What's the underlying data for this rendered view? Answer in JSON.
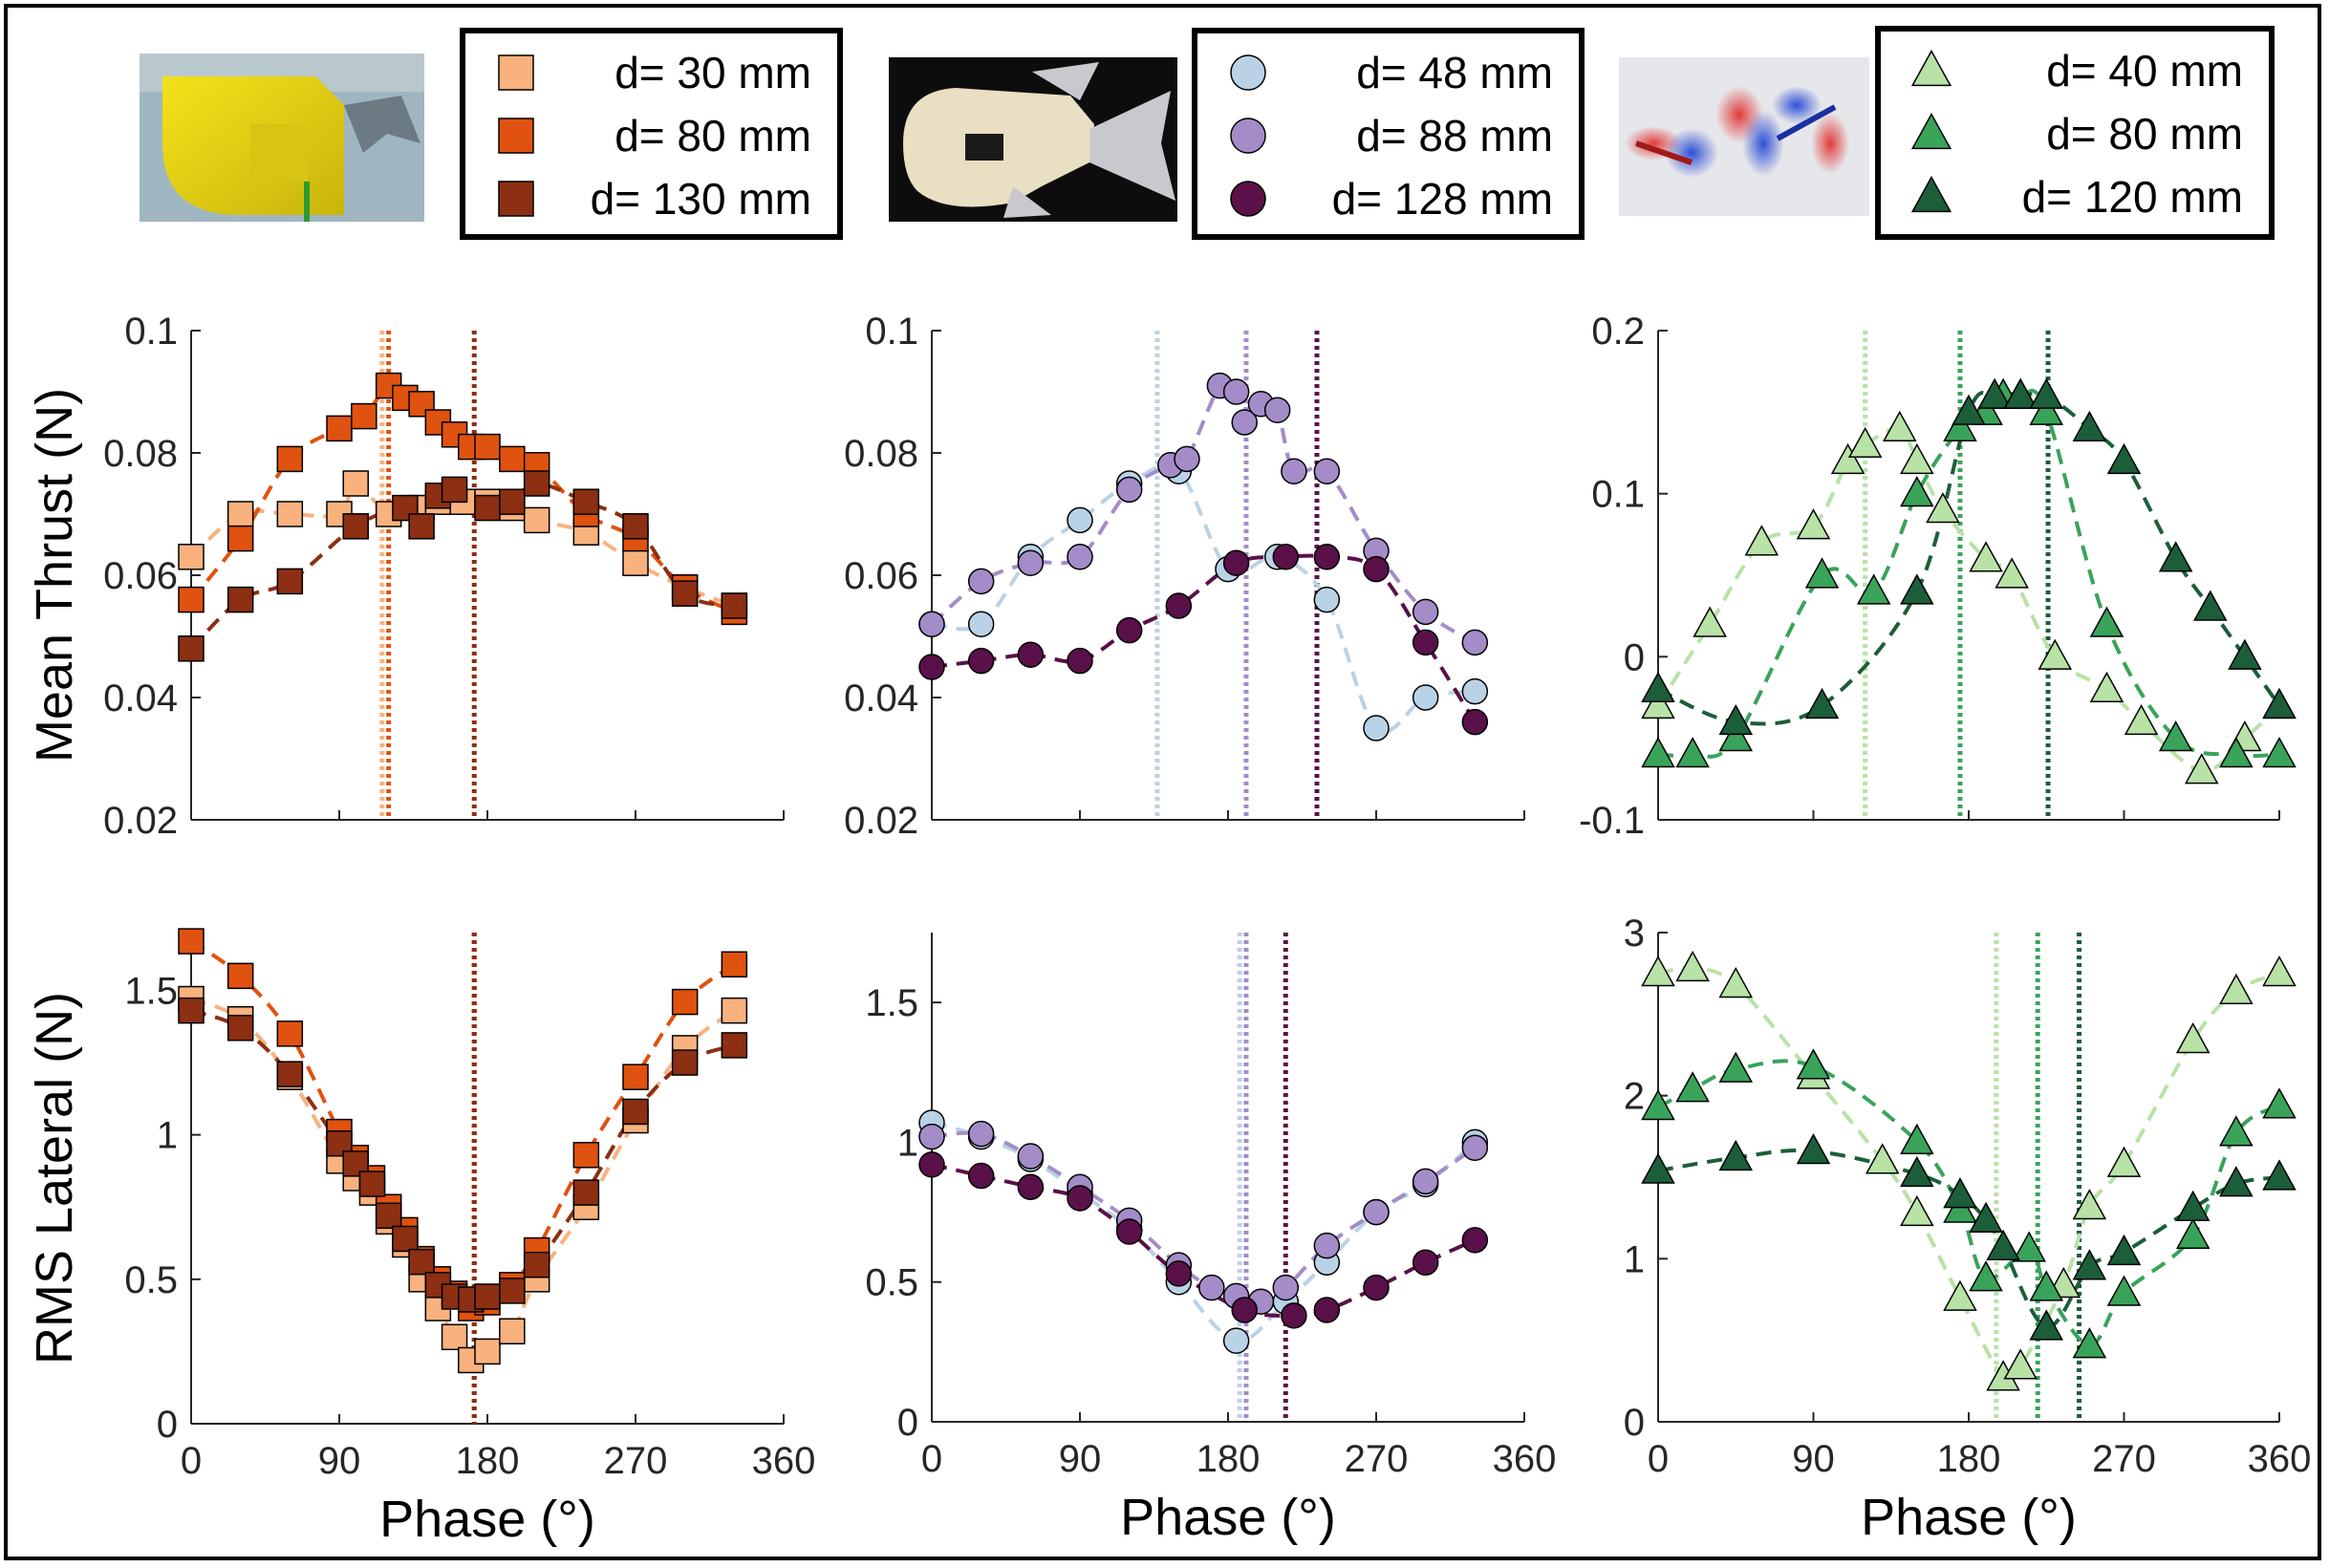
{
  "xlabel": "Phase (°)",
  "ylabels": {
    "top": "Mean Thrust (N)",
    "bottom": "RMS Lateral (N)"
  },
  "legends": [
    {
      "entries": [
        {
          "label": "d=   30 mm",
          "color": "#f9b27e",
          "marker": "square"
        },
        {
          "label": "d=   80 mm",
          "color": "#e0520f",
          "marker": "square"
        },
        {
          "label": "d= 130 mm",
          "color": "#8c2f12",
          "marker": "square"
        }
      ]
    },
    {
      "entries": [
        {
          "label": "d=   48 mm",
          "color": "#b9d2e6",
          "marker": "circle"
        },
        {
          "label": "d=   88 mm",
          "color": "#a48cc9",
          "marker": "circle"
        },
        {
          "label": "d= 128 mm",
          "color": "#5a1048",
          "marker": "circle"
        }
      ]
    },
    {
      "entries": [
        {
          "label": "d=   40 mm",
          "color": "#b8e2a6",
          "marker": "triangle"
        },
        {
          "label": "d=   80 mm",
          "color": "#3aa35a",
          "marker": "triangle"
        },
        {
          "label": "d= 120 mm",
          "color": "#1c5e3a",
          "marker": "triangle"
        }
      ]
    }
  ],
  "chart_data": [
    {
      "type": "scatter",
      "panel": "top-left",
      "ylabel": "Mean Thrust (N)",
      "xlabel": "",
      "xlim": [
        0,
        360
      ],
      "ylim": [
        0.02,
        0.1
      ],
      "xticks": [
        0,
        90,
        180,
        270,
        360
      ],
      "yticks": [
        0.02,
        0.04,
        0.06,
        0.08,
        0.1
      ],
      "yticklabels": [
        "0.02",
        "0.04",
        "0.06",
        "0.08",
        "0.1"
      ],
      "series": [
        {
          "name": "d=   30 mm",
          "color": "#f9b27e",
          "marker": "square",
          "peak": 116,
          "x": [
            0,
            30,
            60,
            90,
            100,
            120,
            140,
            150,
            165,
            180,
            195,
            210,
            240,
            270,
            300,
            330
          ],
          "y": [
            0.063,
            0.07,
            0.07,
            0.07,
            0.075,
            0.07,
            0.071,
            0.072,
            0.072,
            0.072,
            0.071,
            0.069,
            0.067,
            0.062,
            0.058,
            0.055
          ]
        },
        {
          "name": "d=   80 mm",
          "color": "#e0520f",
          "marker": "square",
          "peak": 120,
          "x": [
            0,
            30,
            60,
            90,
            105,
            120,
            130,
            140,
            150,
            160,
            170,
            180,
            195,
            210,
            240,
            270,
            300,
            330
          ],
          "y": [
            0.056,
            0.066,
            0.079,
            0.084,
            0.086,
            0.091,
            0.089,
            0.088,
            0.085,
            0.083,
            0.081,
            0.081,
            0.079,
            0.078,
            0.07,
            0.066,
            0.058,
            0.054
          ]
        },
        {
          "name": "d= 130 mm",
          "color": "#8c2f12",
          "marker": "square",
          "peak": 172,
          "x": [
            0,
            30,
            60,
            100,
            130,
            140,
            150,
            160,
            180,
            195,
            210,
            240,
            270,
            300,
            330
          ],
          "y": [
            0.048,
            0.056,
            0.059,
            0.068,
            0.071,
            0.068,
            0.073,
            0.074,
            0.071,
            0.072,
            0.075,
            0.072,
            0.068,
            0.057,
            0.055
          ]
        }
      ]
    },
    {
      "type": "scatter",
      "panel": "top-middle",
      "ylabel": "",
      "xlabel": "",
      "xlim": [
        0,
        360
      ],
      "ylim": [
        0.02,
        0.1
      ],
      "xticks": [
        0,
        90,
        180,
        270,
        360
      ],
      "yticks": [
        0.02,
        0.04,
        0.06,
        0.08,
        0.1
      ],
      "yticklabels": [
        "0.02",
        "0.04",
        "0.06",
        "0.08",
        "0.1"
      ],
      "series": [
        {
          "name": "d=   48 mm",
          "color": "#b9d2e6",
          "marker": "circle",
          "peak": 137,
          "x": [
            0,
            30,
            60,
            90,
            120,
            150,
            180,
            210,
            240,
            270,
            300,
            330
          ],
          "y": [
            0.052,
            0.052,
            0.063,
            0.069,
            0.075,
            0.077,
            0.061,
            0.063,
            0.056,
            0.035,
            0.04,
            0.041
          ]
        },
        {
          "name": "d=   88 mm",
          "color": "#a48cc9",
          "marker": "circle",
          "peak": 191,
          "x": [
            0,
            30,
            60,
            90,
            120,
            145,
            155,
            175,
            185,
            190,
            200,
            210,
            220,
            240,
            270,
            300,
            330
          ],
          "y": [
            0.052,
            0.059,
            0.062,
            0.063,
            0.074,
            0.078,
            0.079,
            0.091,
            0.09,
            0.085,
            0.088,
            0.087,
            0.077,
            0.077,
            0.064,
            0.054,
            0.049
          ]
        },
        {
          "name": "d= 128 mm",
          "color": "#5a1048",
          "marker": "circle",
          "peak": 234,
          "x": [
            0,
            30,
            60,
            90,
            120,
            150,
            185,
            215,
            240,
            270,
            300,
            330
          ],
          "y": [
            0.045,
            0.046,
            0.047,
            0.046,
            0.051,
            0.055,
            0.062,
            0.063,
            0.063,
            0.061,
            0.049,
            0.036
          ]
        }
      ]
    },
    {
      "type": "scatter",
      "panel": "top-right",
      "ylabel": "",
      "xlabel": "",
      "xlim": [
        0,
        360
      ],
      "ylim": [
        -0.1,
        0.2
      ],
      "xticks": [
        0,
        90,
        180,
        270,
        360
      ],
      "yticks": [
        -0.1,
        0,
        0.1,
        0.2
      ],
      "yticklabels": [
        "-0.1",
        "0",
        "0.1",
        "0.2"
      ],
      "series": [
        {
          "name": "d=   40 mm",
          "color": "#b8e2a6",
          "marker": "triangle",
          "peak": 120,
          "x": [
            0,
            30,
            60,
            90,
            110,
            120,
            140,
            150,
            165,
            190,
            205,
            230,
            260,
            280,
            315,
            340,
            360
          ],
          "y": [
            -0.03,
            0.02,
            0.07,
            0.08,
            0.12,
            0.13,
            0.14,
            0.12,
            0.09,
            0.06,
            0.05,
            0.0,
            -0.02,
            -0.04,
            -0.07,
            -0.05,
            -0.03
          ]
        },
        {
          "name": "d=   80 mm",
          "color": "#3aa35a",
          "marker": "triangle",
          "peak": 175,
          "x": [
            0,
            20,
            45,
            95,
            125,
            150,
            175,
            190,
            200,
            210,
            225,
            260,
            300,
            335,
            360
          ],
          "y": [
            -0.06,
            -0.06,
            -0.05,
            0.05,
            0.04,
            0.1,
            0.14,
            0.15,
            0.16,
            0.16,
            0.15,
            0.02,
            -0.05,
            -0.06,
            -0.06
          ],
          "note": ""
        },
        {
          "name": "d= 120 mm",
          "color": "#1c5e3a",
          "marker": "triangle",
          "peak": 226,
          "x": [
            0,
            45,
            95,
            150,
            180,
            195,
            210,
            225,
            250,
            270,
            300,
            320,
            340,
            360
          ],
          "y": [
            -0.02,
            -0.04,
            -0.03,
            0.04,
            0.15,
            0.16,
            0.16,
            0.16,
            0.14,
            0.12,
            0.06,
            0.03,
            0.0,
            -0.03
          ]
        }
      ]
    },
    {
      "type": "scatter",
      "panel": "bottom-left",
      "ylabel": "RMS Lateral (N)",
      "xlabel": "Phase (°)",
      "xlim": [
        0,
        360
      ],
      "ylim": [
        0,
        1.7
      ],
      "xticks": [
        0,
        90,
        180,
        270,
        360
      ],
      "yticks": [
        0,
        0.5,
        1,
        1.5
      ],
      "yticklabels": [
        "0",
        "0.5",
        "1",
        "1.5"
      ],
      "series": [
        {
          "name": "d=   30 mm",
          "color": "#f9b27e",
          "marker": "square",
          "peak": 172,
          "x": [
            0,
            30,
            60,
            90,
            100,
            110,
            120,
            130,
            140,
            150,
            160,
            170,
            180,
            195,
            210,
            240,
            270,
            300,
            330
          ],
          "y": [
            1.47,
            1.4,
            1.2,
            0.91,
            0.85,
            0.8,
            0.7,
            0.62,
            0.5,
            0.4,
            0.3,
            0.22,
            0.25,
            0.32,
            0.5,
            0.75,
            1.05,
            1.3,
            1.43
          ]
        },
        {
          "name": "d=   80 mm",
          "color": "#e0520f",
          "marker": "square",
          "peak": 172,
          "x": [
            0,
            30,
            60,
            90,
            100,
            110,
            120,
            130,
            140,
            150,
            160,
            170,
            180,
            195,
            210,
            240,
            270,
            300,
            330
          ],
          "y": [
            1.67,
            1.55,
            1.35,
            1.01,
            0.92,
            0.85,
            0.75,
            0.67,
            0.57,
            0.5,
            0.45,
            0.4,
            0.42,
            0.48,
            0.6,
            0.93,
            1.2,
            1.46,
            1.59
          ]
        },
        {
          "name": "d= 130 mm",
          "color": "#8c2f12",
          "marker": "square",
          "peak": 172,
          "x": [
            0,
            30,
            60,
            90,
            100,
            110,
            120,
            130,
            140,
            150,
            160,
            170,
            180,
            195,
            210,
            240,
            270,
            300,
            330
          ],
          "y": [
            1.43,
            1.37,
            1.21,
            0.97,
            0.9,
            0.83,
            0.72,
            0.64,
            0.56,
            0.48,
            0.44,
            0.43,
            0.44,
            0.46,
            0.55,
            0.8,
            1.08,
            1.25,
            1.31
          ]
        }
      ]
    },
    {
      "type": "scatter",
      "panel": "bottom-middle",
      "ylabel": "",
      "xlabel": "Phase (°)",
      "xlim": [
        0,
        360
      ],
      "ylim": [
        0,
        1.75
      ],
      "xticks": [
        0,
        90,
        180,
        270,
        360
      ],
      "yticks": [
        0,
        0.5,
        1,
        1.5
      ],
      "yticklabels": [
        "0",
        "0.5",
        "1",
        "1.5"
      ],
      "series": [
        {
          "name": "d=   48 mm",
          "color": "#b9d2e6",
          "marker": "circle",
          "peak": 187,
          "x": [
            0,
            30,
            60,
            90,
            120,
            150,
            185,
            215,
            240,
            270,
            300,
            330
          ],
          "y": [
            1.07,
            1.02,
            0.94,
            0.82,
            0.69,
            0.5,
            0.29,
            0.43,
            0.57,
            0.75,
            0.85,
            1.0
          ]
        },
        {
          "name": "d=   88 mm",
          "color": "#a48cc9",
          "marker": "circle",
          "peak": 191,
          "x": [
            0,
            30,
            60,
            90,
            120,
            150,
            170,
            185,
            200,
            215,
            240,
            270,
            300,
            330
          ],
          "y": [
            1.02,
            1.03,
            0.95,
            0.84,
            0.72,
            0.56,
            0.48,
            0.45,
            0.43,
            0.48,
            0.63,
            0.75,
            0.86,
            0.98
          ]
        },
        {
          "name": "d= 128 mm",
          "color": "#5a1048",
          "marker": "circle",
          "peak": 215,
          "x": [
            0,
            30,
            60,
            90,
            120,
            150,
            190,
            220,
            240,
            270,
            300,
            330
          ],
          "y": [
            0.92,
            0.88,
            0.84,
            0.8,
            0.68,
            0.53,
            0.4,
            0.38,
            0.4,
            0.48,
            0.57,
            0.65
          ]
        }
      ]
    },
    {
      "type": "scatter",
      "panel": "bottom-right",
      "ylabel": "",
      "xlabel": "Phase (°)",
      "xlim": [
        0,
        360
      ],
      "ylim": [
        0,
        3
      ],
      "xticks": [
        0,
        90,
        180,
        270,
        360
      ],
      "yticks": [
        0,
        1,
        2,
        3
      ],
      "yticklabels": [
        "0",
        "1",
        "2",
        "3"
      ],
      "series": [
        {
          "name": "d=   40 mm",
          "color": "#b8e2a6",
          "marker": "triangle",
          "peak": 196,
          "x": [
            0,
            20,
            45,
            90,
            130,
            150,
            175,
            200,
            210,
            235,
            250,
            270,
            310,
            335,
            360
          ],
          "y": [
            2.75,
            2.78,
            2.68,
            2.12,
            1.6,
            1.28,
            0.76,
            0.27,
            0.34,
            0.84,
            1.32,
            1.58,
            2.34,
            2.64,
            2.75
          ]
        },
        {
          "name": "d=   80 mm",
          "color": "#3aa35a",
          "marker": "triangle",
          "peak": 220,
          "x": [
            0,
            20,
            45,
            90,
            150,
            175,
            190,
            215,
            225,
            250,
            270,
            310,
            335,
            360
          ],
          "y": [
            1.93,
            2.04,
            2.16,
            2.18,
            1.72,
            1.3,
            0.88,
            1.06,
            0.82,
            0.47,
            0.79,
            1.14,
            1.77,
            1.94
          ]
        },
        {
          "name": "d= 120 mm",
          "color": "#1c5e3a",
          "marker": "triangle",
          "peak": 244,
          "x": [
            0,
            45,
            90,
            150,
            175,
            190,
            200,
            225,
            250,
            270,
            310,
            335,
            360
          ],
          "y": [
            1.54,
            1.62,
            1.66,
            1.52,
            1.39,
            1.24,
            1.07,
            0.58,
            0.95,
            1.04,
            1.31,
            1.46,
            1.5
          ]
        }
      ]
    }
  ]
}
